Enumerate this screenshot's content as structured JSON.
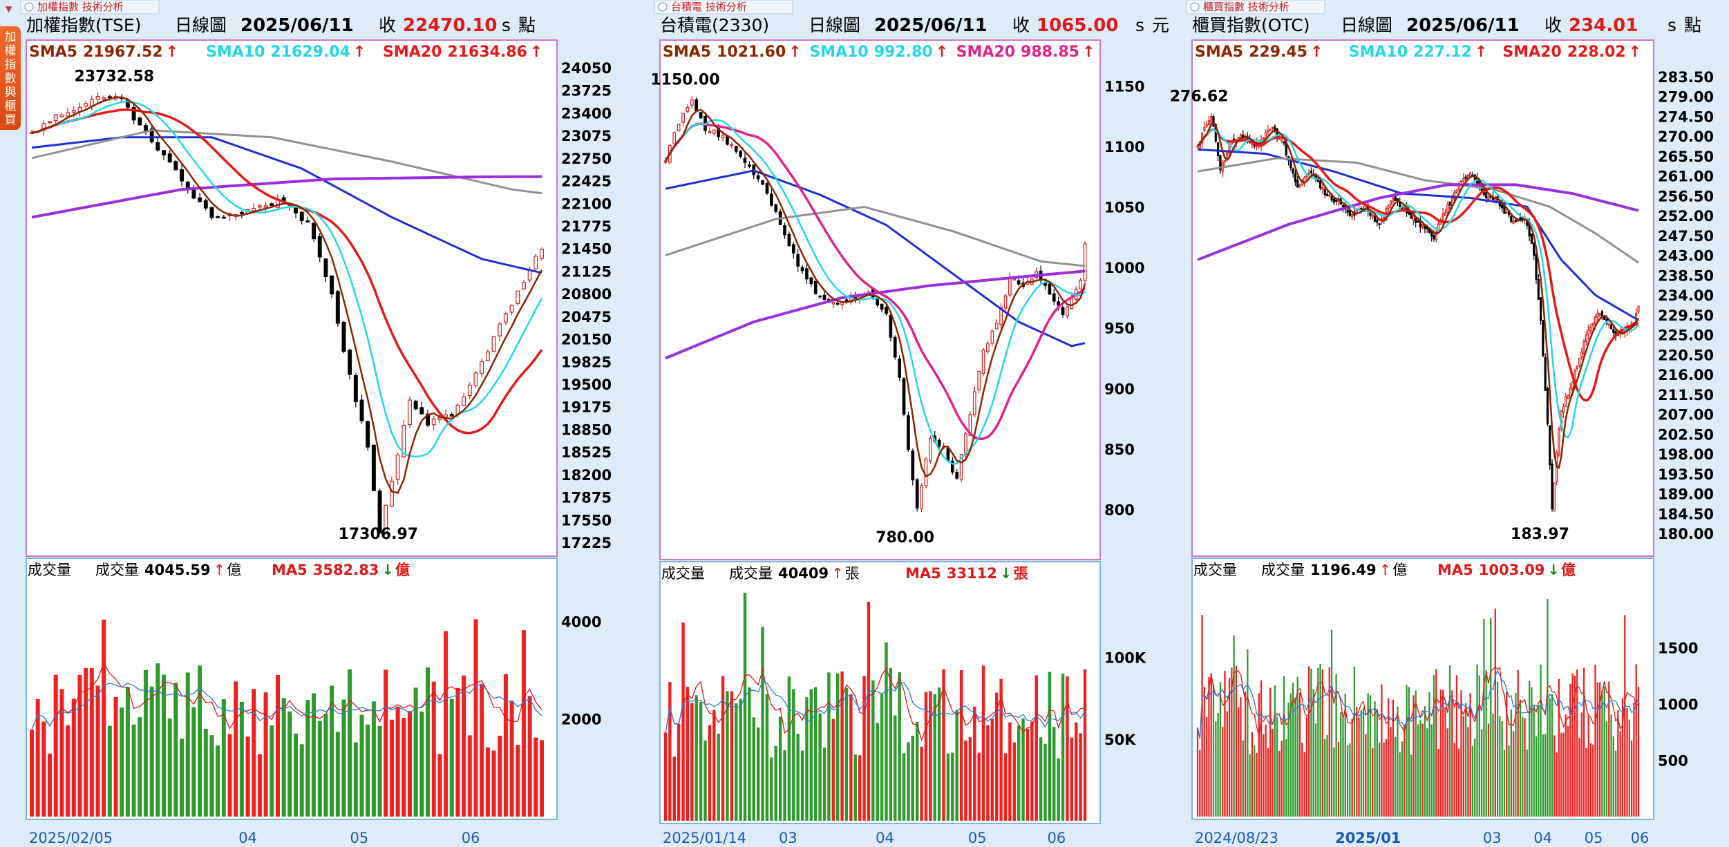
{
  "side_tab": {
    "label": "加權指數與櫃買"
  },
  "charts": [
    {
      "id": "tse",
      "tab_label": "加權指數 技術分析",
      "title": "加權指數(TSE)",
      "period": "日線圖",
      "date": "2025/06/11",
      "close_label": "收",
      "close_value": "22470.10",
      "unit": "點",
      "s_label": "s",
      "sma": [
        {
          "name": "SMA5",
          "value": "21967.52",
          "color": "#8b2500"
        },
        {
          "name": "SMA10",
          "value": "21629.04",
          "color": "#22d8e8"
        },
        {
          "name": "SMA20",
          "value": "21634.86",
          "color": "#e81818"
        }
      ],
      "y_ticks": [
        "24050",
        "23725",
        "23400",
        "23075",
        "22750",
        "22425",
        "22100",
        "21775",
        "21450",
        "21125",
        "20800",
        "20475",
        "20150",
        "19825",
        "19500",
        "19175",
        "18850",
        "18525",
        "18200",
        "17875",
        "17550",
        "17225"
      ],
      "high_label": "23732.58",
      "low_label": "17306.97",
      "volume": {
        "label": "成交量",
        "value_label": "成交量",
        "value": "4045.59",
        "value_unit": "億",
        "ma_name": "MA5",
        "ma_value": "3582.83",
        "ma_unit": "億",
        "y_ticks": [
          "4000",
          "2000"
        ]
      },
      "x_ticks": [
        "2025/02/05",
        "04",
        "05",
        "06"
      ],
      "chart_data": {
        "type": "candlestick",
        "y_min": 17225,
        "y_max": 24050,
        "n": 86,
        "anchors": [
          [
            0,
            23100
          ],
          [
            4,
            23350
          ],
          [
            8,
            23500
          ],
          [
            12,
            23650
          ],
          [
            15,
            23600
          ],
          [
            18,
            23200
          ],
          [
            22,
            22800
          ],
          [
            26,
            22300
          ],
          [
            30,
            21900
          ],
          [
            34,
            21950
          ],
          [
            38,
            22050
          ],
          [
            42,
            22150
          ],
          [
            46,
            21800
          ],
          [
            50,
            20800
          ],
          [
            53,
            19600
          ],
          [
            56,
            18600
          ],
          [
            58,
            17400
          ],
          [
            60,
            18100
          ],
          [
            63,
            19300
          ],
          [
            66,
            18950
          ],
          [
            70,
            19050
          ],
          [
            74,
            19650
          ],
          [
            78,
            20350
          ],
          [
            82,
            20950
          ],
          [
            86,
            21650
          ],
          [
            90,
            21550
          ],
          [
            94,
            21700
          ],
          [
            98,
            21350
          ],
          [
            102,
            21150
          ],
          [
            104,
            21000
          ],
          [
            106,
            21450
          ],
          [
            108,
            21600
          ],
          [
            111,
            21850
          ],
          [
            113,
            22470
          ]
        ],
        "sma_levels": {
          "sma60": [
            [
              0,
              22900
            ],
            [
              15,
              23050
            ],
            [
              30,
              23050
            ],
            [
              45,
              22600
            ],
            [
              60,
              21900
            ],
            [
              75,
              21300
            ],
            [
              90,
              21000
            ],
            [
              105,
              20900
            ],
            [
              113,
              20850
            ]
          ],
          "sma200": [
            [
              0,
              22750
            ],
            [
              20,
              23150
            ],
            [
              40,
              23050
            ],
            [
              60,
              22700
            ],
            [
              80,
              22300
            ],
            [
              100,
              22080
            ],
            [
              113,
              22000
            ]
          ],
          "sma240": [
            [
              0,
              21900
            ],
            [
              25,
              22300
            ],
            [
              50,
              22450
            ],
            [
              75,
              22480
            ],
            [
              100,
              22490
            ],
            [
              113,
              22480
            ]
          ]
        },
        "volume_max": 4500
      }
    },
    {
      "id": "tsmc",
      "tab_label": "台積電 技術分析",
      "title": "台積電(2330)",
      "period": "日線圖",
      "date": "2025/06/11",
      "close_label": "收",
      "close_value": "1065.00",
      "unit": "元",
      "s_label": "s",
      "sma": [
        {
          "name": "SMA5",
          "value": "1021.60",
          "color": "#8b2500"
        },
        {
          "name": "SMA10",
          "value": "992.80",
          "color": "#22d8e8"
        },
        {
          "name": "SMA20",
          "value": "988.85",
          "color": "#e0228c"
        }
      ],
      "y_ticks": [
        "1150",
        "1100",
        "1050",
        "1000",
        "950",
        "900",
        "850",
        "800"
      ],
      "high_label": "1150.00",
      "low_label": "780.00",
      "volume": {
        "label": "成交量",
        "value_label": "成交量",
        "value": "40409",
        "value_unit": "張",
        "ma_name": "MA5",
        "ma_value": "33112",
        "ma_unit": "張",
        "y_ticks": [
          "100K",
          "50K"
        ]
      },
      "x_ticks": [
        "2025/01/14",
        "03",
        "04",
        "05",
        "06"
      ],
      "chart_data": {
        "type": "candlestick",
        "y_min": 770,
        "y_max": 1165,
        "n": 96,
        "anchors": [
          [
            0,
            1090
          ],
          [
            3,
            1120
          ],
          [
            6,
            1140
          ],
          [
            9,
            1115
          ],
          [
            12,
            1110
          ],
          [
            15,
            1100
          ],
          [
            18,
            1085
          ],
          [
            22,
            1070
          ],
          [
            25,
            1045
          ],
          [
            28,
            1020
          ],
          [
            31,
            995
          ],
          [
            34,
            980
          ],
          [
            38,
            970
          ],
          [
            42,
            975
          ],
          [
            46,
            980
          ],
          [
            50,
            960
          ],
          [
            53,
            910
          ],
          [
            55,
            850
          ],
          [
            57,
            800
          ],
          [
            60,
            860
          ],
          [
            63,
            850
          ],
          [
            66,
            825
          ],
          [
            69,
            880
          ],
          [
            72,
            930
          ],
          [
            75,
            955
          ],
          [
            78,
            990
          ],
          [
            81,
            985
          ],
          [
            84,
            995
          ],
          [
            87,
            980
          ],
          [
            90,
            960
          ],
          [
            92,
            975
          ],
          [
            94,
            990
          ],
          [
            96,
            1050
          ],
          [
            98,
            1065
          ]
        ],
        "sma_levels": {
          "sma60": [
            [
              0,
              1065
            ],
            [
              20,
              1080
            ],
            [
              35,
              1060
            ],
            [
              50,
              1035
            ],
            [
              65,
              995
            ],
            [
              80,
              955
            ],
            [
              92,
              935
            ],
            [
              98,
              940
            ]
          ],
          "sma120": [
            [
              0,
              1010
            ],
            [
              25,
              1040
            ],
            [
              45,
              1050
            ],
            [
              65,
              1030
            ],
            [
              85,
              1005
            ],
            [
              98,
              1000
            ]
          ],
          "sma240": [
            [
              0,
              925
            ],
            [
              20,
              955
            ],
            [
              40,
              975
            ],
            [
              60,
              985
            ],
            [
              80,
              992
            ],
            [
              98,
              998
            ]
          ]
        },
        "volume_max": 135000
      }
    },
    {
      "id": "otc",
      "tab_label": "櫃買指數 技術分析",
      "title": "櫃買指數(OTC)",
      "period": "日線圖",
      "date": "2025/06/11",
      "close_label": "收",
      "close_value": "234.01",
      "unit": "點",
      "s_label": "s",
      "sma": [
        {
          "name": "SMA5",
          "value": "229.45",
          "color": "#8b2500"
        },
        {
          "name": "SMA10",
          "value": "227.12",
          "color": "#22d8e8"
        },
        {
          "name": "SMA20",
          "value": "228.02",
          "color": "#e81818"
        }
      ],
      "y_ticks": [
        "283.50",
        "279.00",
        "274.50",
        "270.00",
        "265.50",
        "261.00",
        "256.50",
        "252.00",
        "247.50",
        "243.00",
        "238.50",
        "234.00",
        "229.50",
        "225.00",
        "220.50",
        "216.00",
        "211.50",
        "207.00",
        "202.50",
        "198.00",
        "193.50",
        "189.00",
        "184.50",
        "180.00"
      ],
      "high_label": "276.62",
      "low_label": "183.97",
      "volume": {
        "label": "成交量",
        "value_label": "成交量",
        "value": "1196.49",
        "value_unit": "億",
        "ma_name": "MA5",
        "ma_value": "1003.09",
        "ma_unit": "億",
        "y_ticks": [
          "1500",
          "1000",
          "500"
        ]
      },
      "x_ticks": [
        "2024/08/23",
        "2025/01",
        "03",
        "04",
        "05",
        "06"
      ],
      "chart_data": {
        "type": "candlestick",
        "y_min": 178,
        "y_max": 285.5,
        "n": 195,
        "anchors": [
          [
            0,
            268
          ],
          [
            6,
            275
          ],
          [
            10,
            262
          ],
          [
            14,
            268
          ],
          [
            20,
            270
          ],
          [
            26,
            268
          ],
          [
            32,
            272
          ],
          [
            38,
            268
          ],
          [
            44,
            258
          ],
          [
            50,
            262
          ],
          [
            56,
            257
          ],
          [
            62,
            255
          ],
          [
            68,
            252
          ],
          [
            74,
            254
          ],
          [
            80,
            250
          ],
          [
            86,
            256
          ],
          [
            92,
            253
          ],
          [
            98,
            250
          ],
          [
            104,
            247
          ],
          [
            108,
            252
          ],
          [
            114,
            258
          ],
          [
            120,
            262
          ],
          [
            126,
            257
          ],
          [
            132,
            255
          ],
          [
            138,
            251
          ],
          [
            144,
            252
          ],
          [
            148,
            243
          ],
          [
            151,
            228
          ],
          [
            154,
            205
          ],
          [
            156,
            186
          ],
          [
            158,
            198
          ],
          [
            160,
            208
          ],
          [
            164,
            213
          ],
          [
            168,
            220
          ],
          [
            172,
            226
          ],
          [
            176,
            230
          ],
          [
            180,
            228
          ],
          [
            184,
            225
          ],
          [
            188,
            226
          ],
          [
            192,
            228
          ],
          [
            195,
            234
          ]
        ],
        "sma_levels": {
          "sma60": [
            [
              0,
              267
            ],
            [
              30,
              266
            ],
            [
              60,
              262
            ],
            [
              90,
              257
            ],
            [
              120,
              256
            ],
            [
              145,
              254
            ],
            [
              160,
              242
            ],
            [
              175,
              234
            ],
            [
              195,
              228
            ]
          ],
          "sma120": [
            [
              0,
              262
            ],
            [
              35,
              265
            ],
            [
              70,
              264
            ],
            [
              100,
              260
            ],
            [
              130,
              258
            ],
            [
              155,
              254
            ],
            [
              175,
              248
            ],
            [
              195,
              241
            ]
          ],
          "sma240": [
            [
              0,
              242
            ],
            [
              40,
              250
            ],
            [
              80,
              256
            ],
            [
              110,
              259
            ],
            [
              140,
              259
            ],
            [
              165,
              257
            ],
            [
              195,
              253
            ]
          ]
        },
        "volume_max": 1950
      }
    }
  ]
}
